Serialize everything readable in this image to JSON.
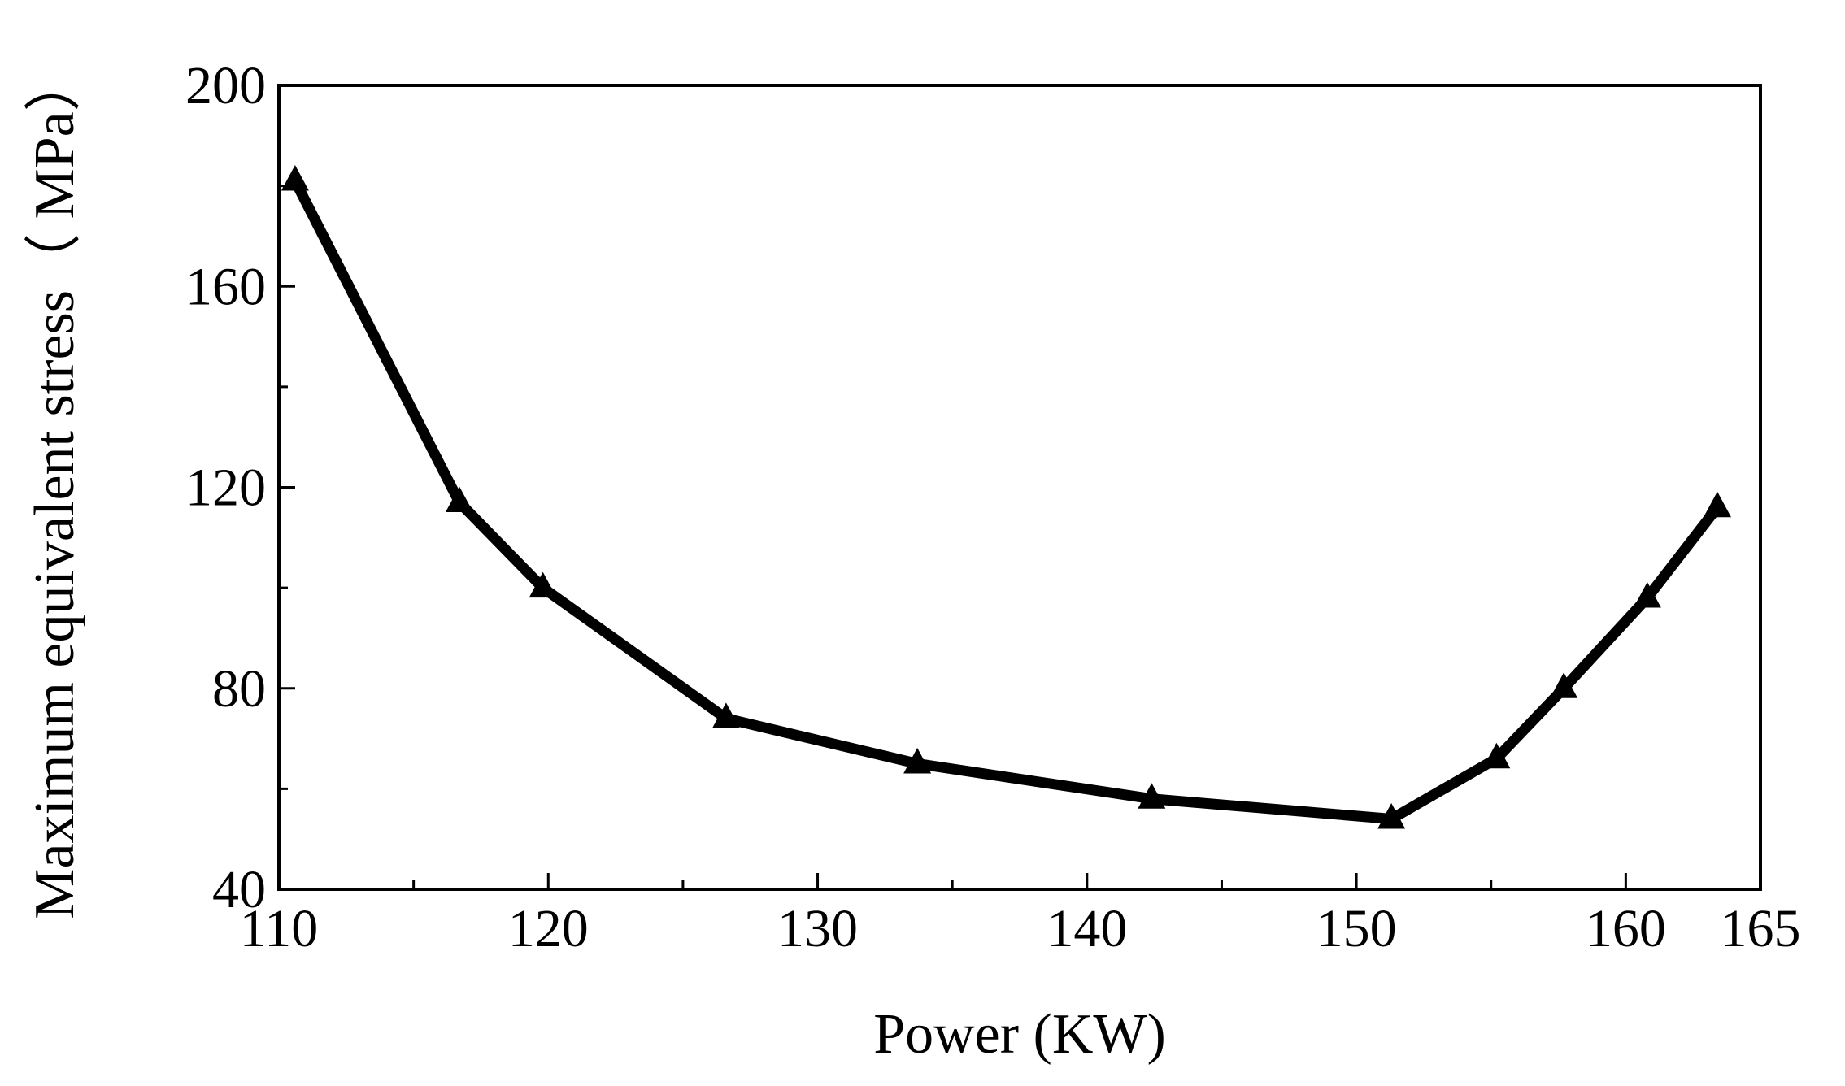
{
  "chart_data": {
    "type": "line",
    "title": "",
    "xlabel": "Power (KW)",
    "ylabel": "Maximum equivalent stress（ MPa）",
    "xlim": [
      110,
      165
    ],
    "ylim": [
      40,
      200
    ],
    "xticks": [
      110,
      120,
      130,
      140,
      150,
      160,
      165
    ],
    "yticks": [
      40,
      80,
      120,
      160,
      200
    ],
    "x_minor_ticks": [
      115,
      125,
      135,
      145,
      155
    ],
    "y_minor_ticks": [
      60,
      100,
      140,
      180
    ],
    "grid": false,
    "marker": "triangle",
    "color": "#000000",
    "series": [
      {
        "x": [
          110.6,
          116.7,
          119.8,
          126.6,
          133.7,
          142.4,
          151.3,
          155.2,
          157.7,
          160.8,
          163.4
        ],
        "y": [
          181,
          117,
          100,
          74,
          65,
          58,
          54,
          66,
          80,
          98,
          116
        ]
      }
    ]
  }
}
